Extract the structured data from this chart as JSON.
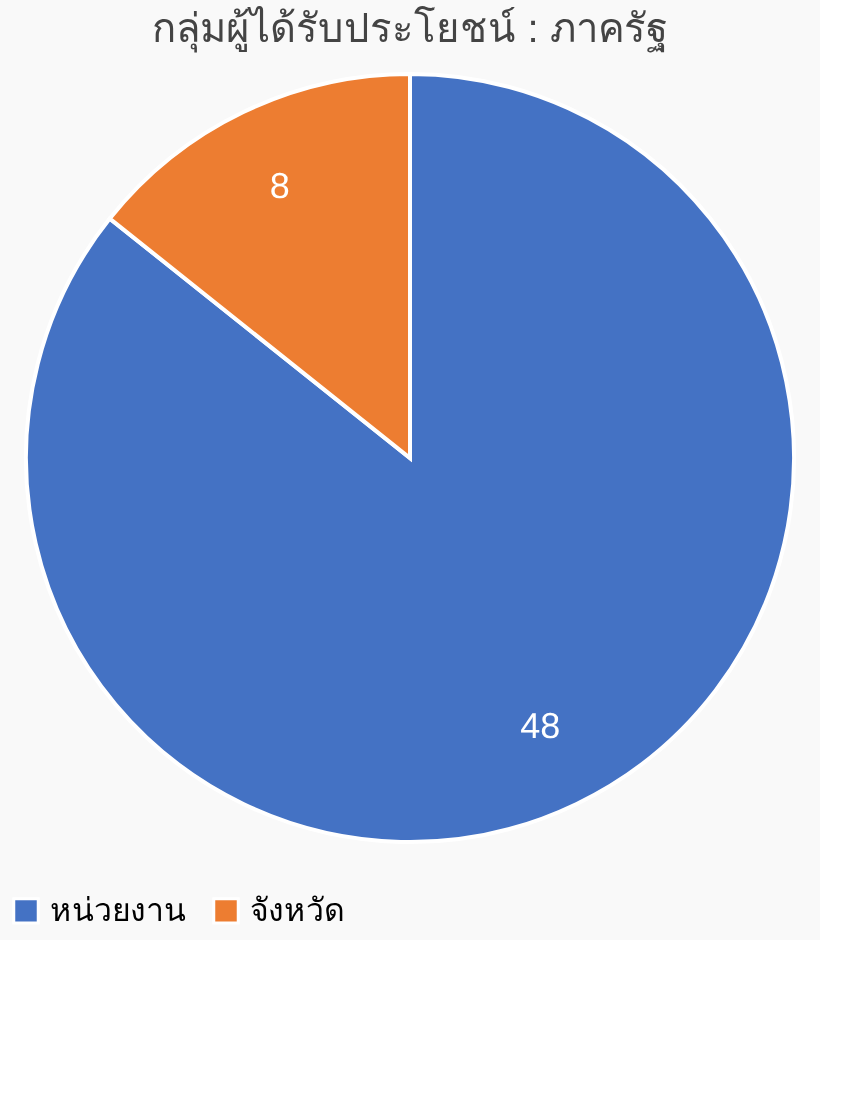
{
  "chart_data": {
    "type": "pie",
    "title": "กลุ่มผู้ได้รับประโยชน์ : ภาครัฐ",
    "categories": [
      "หน่วยงาน",
      "จังหวัด"
    ],
    "values": [
      48,
      8
    ],
    "colors": [
      "#4472c4",
      "#ed7d31"
    ],
    "data_labels": true,
    "legend": "bottom"
  }
}
